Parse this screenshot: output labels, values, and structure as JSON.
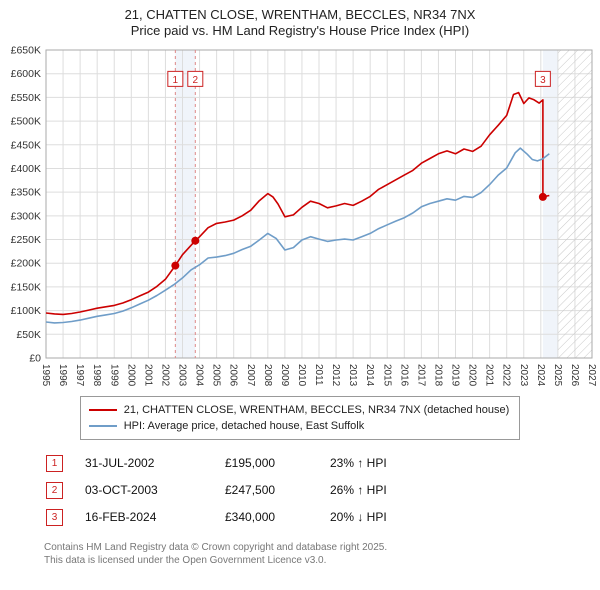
{
  "page": {
    "title": "21, CHATTEN CLOSE, WRENTHAM, BECCLES, NR34 7NX",
    "subtitle": "Price paid vs. HM Land Registry's House Price Index (HPI)"
  },
  "chart_data": {
    "type": "line",
    "x_min": 1995,
    "x_max": 2027,
    "y_min": 0,
    "y_max": 650000,
    "x_ticks": [
      1995,
      1996,
      1997,
      1998,
      1999,
      2000,
      2001,
      2002,
      2003,
      2004,
      2005,
      2006,
      2007,
      2008,
      2009,
      2010,
      2011,
      2012,
      2013,
      2014,
      2015,
      2016,
      2017,
      2018,
      2019,
      2020,
      2021,
      2022,
      2023,
      2024,
      2025,
      2026,
      2027
    ],
    "y_ticks": [
      {
        "v": 0,
        "label": "£0"
      },
      {
        "v": 50000,
        "label": "£50K"
      },
      {
        "v": 100000,
        "label": "£100K"
      },
      {
        "v": 150000,
        "label": "£150K"
      },
      {
        "v": 200000,
        "label": "£200K"
      },
      {
        "v": 250000,
        "label": "£250K"
      },
      {
        "v": 300000,
        "label": "£300K"
      },
      {
        "v": 350000,
        "label": "£350K"
      },
      {
        "v": 400000,
        "label": "£400K"
      },
      {
        "v": 450000,
        "label": "£450K"
      },
      {
        "v": 500000,
        "label": "£500K"
      },
      {
        "v": 550000,
        "label": "£550K"
      },
      {
        "v": 600000,
        "label": "£600K"
      },
      {
        "v": 650000,
        "label": "£650K"
      }
    ],
    "future_hatch": {
      "from": 2025,
      "to": 2027
    },
    "bands": [
      {
        "from": 2002.58,
        "to": 2003.75
      },
      {
        "from": 2024.12,
        "to": 2025.0
      }
    ],
    "dashed_vlines": [
      2002.58,
      2003.75
    ],
    "badge_y": 588000,
    "markers": [
      {
        "n": "1",
        "x": 2002.58,
        "y": 195000
      },
      {
        "n": "2",
        "x": 2003.75,
        "y": 247500
      },
      {
        "n": "3",
        "x": 2024.12,
        "y": 340000
      }
    ],
    "series": [
      {
        "name": "21, CHATTEN CLOSE, WRENTHAM, BECCLES, NR34 7NX (detached house)",
        "color": "#cc0000",
        "points": [
          [
            1995.0,
            95000
          ],
          [
            1995.5,
            93000
          ],
          [
            1996.0,
            92000
          ],
          [
            1996.5,
            94000
          ],
          [
            1997.0,
            97000
          ],
          [
            1997.5,
            101000
          ],
          [
            1998.0,
            105000
          ],
          [
            1998.5,
            108000
          ],
          [
            1999.0,
            111000
          ],
          [
            1999.5,
            116000
          ],
          [
            2000.0,
            123000
          ],
          [
            2000.5,
            131000
          ],
          [
            2001.0,
            139000
          ],
          [
            2001.5,
            151000
          ],
          [
            2002.0,
            166000
          ],
          [
            2002.58,
            195000
          ],
          [
            2003.0,
            218000
          ],
          [
            2003.75,
            247500
          ],
          [
            2004.0,
            256000
          ],
          [
            2004.5,
            275000
          ],
          [
            2005.0,
            284000
          ],
          [
            2005.5,
            287000
          ],
          [
            2006.0,
            291000
          ],
          [
            2006.5,
            300000
          ],
          [
            2007.0,
            312000
          ],
          [
            2007.5,
            332000
          ],
          [
            2008.0,
            347000
          ],
          [
            2008.3,
            340000
          ],
          [
            2008.6,
            325000
          ],
          [
            2009.0,
            298000
          ],
          [
            2009.5,
            302000
          ],
          [
            2010.0,
            318000
          ],
          [
            2010.5,
            331000
          ],
          [
            2011.0,
            326000
          ],
          [
            2011.5,
            317000
          ],
          [
            2012.0,
            321000
          ],
          [
            2012.5,
            326000
          ],
          [
            2013.0,
            322000
          ],
          [
            2013.5,
            331000
          ],
          [
            2014.0,
            341000
          ],
          [
            2014.5,
            356000
          ],
          [
            2015.0,
            366000
          ],
          [
            2015.5,
            376000
          ],
          [
            2016.0,
            386000
          ],
          [
            2016.5,
            396000
          ],
          [
            2017.0,
            411000
          ],
          [
            2017.5,
            421000
          ],
          [
            2018.0,
            431000
          ],
          [
            2018.5,
            437000
          ],
          [
            2019.0,
            431000
          ],
          [
            2019.5,
            441000
          ],
          [
            2020.0,
            436000
          ],
          [
            2020.5,
            447000
          ],
          [
            2021.0,
            471000
          ],
          [
            2021.5,
            491000
          ],
          [
            2022.0,
            512000
          ],
          [
            2022.4,
            556000
          ],
          [
            2022.7,
            560000
          ],
          [
            2023.0,
            537000
          ],
          [
            2023.3,
            549000
          ],
          [
            2023.6,
            545000
          ],
          [
            2023.9,
            538000
          ],
          [
            2024.12,
            545000
          ],
          [
            2024.12,
            340000
          ],
          [
            2024.5,
            343000
          ]
        ]
      },
      {
        "name": "HPI: Average price, detached house, East Suffolk",
        "color": "#6f9dc8",
        "points": [
          [
            1995.0,
            76000
          ],
          [
            1995.5,
            74000
          ],
          [
            1996.0,
            75000
          ],
          [
            1996.5,
            77000
          ],
          [
            1997.0,
            80000
          ],
          [
            1997.5,
            84000
          ],
          [
            1998.0,
            88000
          ],
          [
            1998.5,
            91000
          ],
          [
            1999.0,
            94000
          ],
          [
            1999.5,
            99000
          ],
          [
            2000.0,
            106000
          ],
          [
            2000.5,
            114000
          ],
          [
            2001.0,
            122000
          ],
          [
            2001.5,
            132000
          ],
          [
            2002.0,
            143000
          ],
          [
            2002.5,
            155000
          ],
          [
            2003.0,
            169000
          ],
          [
            2003.5,
            186000
          ],
          [
            2004.0,
            197000
          ],
          [
            2004.5,
            211000
          ],
          [
            2005.0,
            213000
          ],
          [
            2005.5,
            216000
          ],
          [
            2006.0,
            221000
          ],
          [
            2006.5,
            229000
          ],
          [
            2007.0,
            236000
          ],
          [
            2007.5,
            249000
          ],
          [
            2008.0,
            263000
          ],
          [
            2008.5,
            252000
          ],
          [
            2009.0,
            228000
          ],
          [
            2009.5,
            233000
          ],
          [
            2010.0,
            249000
          ],
          [
            2010.5,
            256000
          ],
          [
            2011.0,
            251000
          ],
          [
            2011.5,
            246000
          ],
          [
            2012.0,
            249000
          ],
          [
            2012.5,
            251000
          ],
          [
            2013.0,
            249000
          ],
          [
            2013.5,
            256000
          ],
          [
            2014.0,
            263000
          ],
          [
            2014.5,
            273000
          ],
          [
            2015.0,
            281000
          ],
          [
            2015.5,
            289000
          ],
          [
            2016.0,
            296000
          ],
          [
            2016.5,
            306000
          ],
          [
            2017.0,
            319000
          ],
          [
            2017.5,
            326000
          ],
          [
            2018.0,
            331000
          ],
          [
            2018.5,
            336000
          ],
          [
            2019.0,
            333000
          ],
          [
            2019.5,
            341000
          ],
          [
            2020.0,
            339000
          ],
          [
            2020.5,
            349000
          ],
          [
            2021.0,
            366000
          ],
          [
            2021.5,
            386000
          ],
          [
            2022.0,
            401000
          ],
          [
            2022.5,
            433000
          ],
          [
            2022.8,
            443000
          ],
          [
            2023.2,
            430000
          ],
          [
            2023.5,
            419000
          ],
          [
            2023.8,
            416000
          ],
          [
            2024.1,
            420000
          ],
          [
            2024.5,
            431000
          ]
        ]
      }
    ]
  },
  "legend": {
    "items": [
      {
        "label": "21, CHATTEN CLOSE, WRENTHAM, BECCLES, NR34 7NX (detached house)",
        "color": "#cc0000"
      },
      {
        "label": "HPI: Average price, detached house, East Suffolk",
        "color": "#6f9dc8"
      }
    ]
  },
  "transactions": [
    {
      "n": "1",
      "date": "31-JUL-2002",
      "price": "£195,000",
      "hpi": "23% ↑ HPI"
    },
    {
      "n": "2",
      "date": "03-OCT-2003",
      "price": "£247,500",
      "hpi": "26% ↑ HPI"
    },
    {
      "n": "3",
      "date": "16-FEB-2024",
      "price": "£340,000",
      "hpi": "20% ↓ HPI"
    }
  ],
  "footer": {
    "line1": "Contains HM Land Registry data © Crown copyright and database right 2025.",
    "line2": "This data is licensed under the Open Government Licence v3.0."
  }
}
